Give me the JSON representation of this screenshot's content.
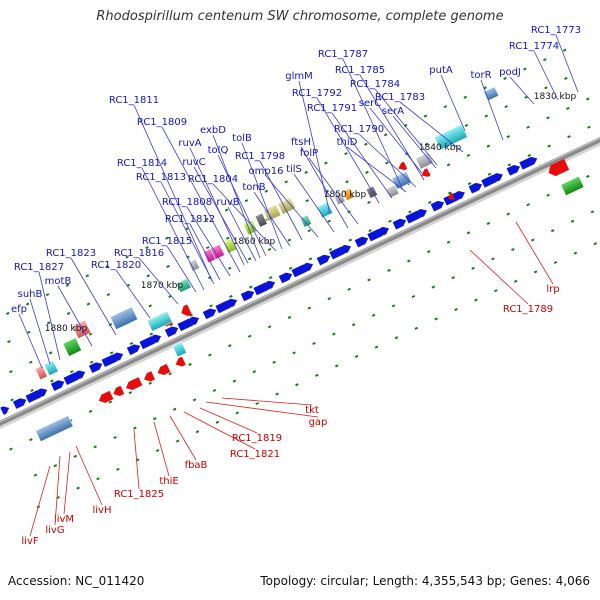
{
  "title": "Rhodospirillum centenum SW chromosome, complete genome",
  "footer": {
    "accession": "Accession: NC_011420",
    "summary": "Topology: circular; Length: 4,355,543 bp; Genes: 4,066"
  },
  "scale_labels": [
    "1830 kbp",
    "1840 kbp",
    "1850 kbp",
    "1860 kbp",
    "1870 kbp",
    "1880 kbp"
  ],
  "colors": {
    "forward": "#0a14d8",
    "reverse": "#e80c0c",
    "label_forward": "#1414c8",
    "label_reverse": "#cc0000",
    "backbone": "#8a8a8a",
    "tick": "#1e7a1e"
  },
  "labels_forward": [
    "RC1_1773",
    "RC1_1774",
    "RC1_1787",
    "podJ",
    "putA",
    "torR",
    "RC1_1785",
    "glmM",
    "RC1_1784",
    "RC1_1783",
    "RC1_1792",
    "serC",
    "serA",
    "RC1_1791",
    "RC1_1811",
    "RC1_1790",
    "RC1_1809",
    "exbD",
    "thiD",
    "tolB",
    "ruvA",
    "ftsH",
    "tolQ",
    "folP",
    "RC1_1798",
    "ruvC",
    "omp16",
    "tilS",
    "RC1_1814",
    "RC1_1813",
    "RC1_1804",
    "tonB",
    "RC1_1808",
    "ruvB",
    "RC1_1812",
    "RC1_1815",
    "RC1_1823",
    "RC1_1816",
    "RC1_1827",
    "motB",
    "RC1_1820",
    "suhB",
    "efp"
  ],
  "labels_reverse": [
    "lrp",
    "RC1_1789",
    "tkt",
    "gap",
    "RC1_1819",
    "RC1_1821",
    "fbaB",
    "thiE",
    "RC1_1825",
    "livH",
    "livM",
    "livG",
    "livF"
  ]
}
